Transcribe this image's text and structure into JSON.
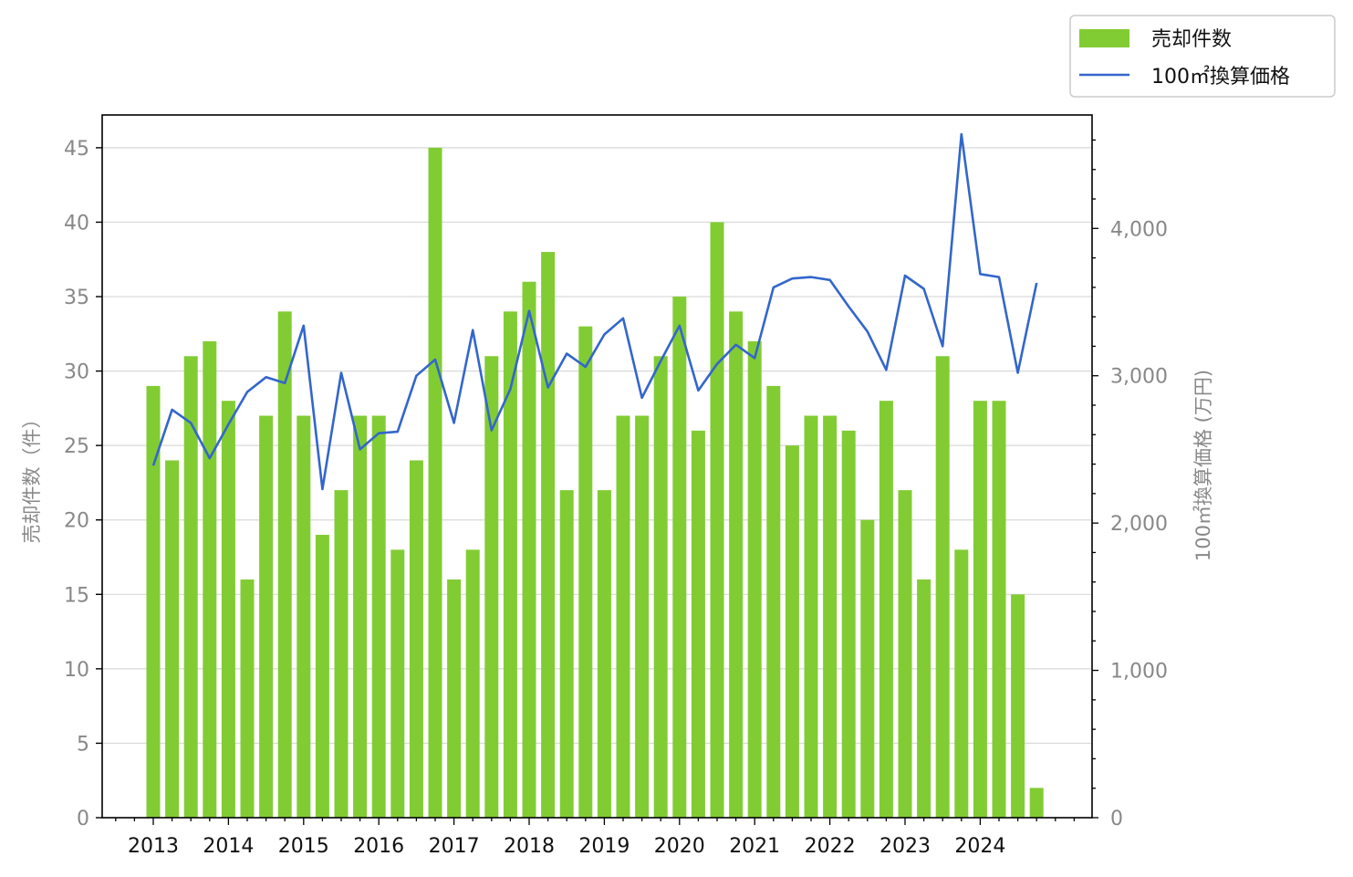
{
  "chart_data": {
    "type": "bar",
    "title": "",
    "xlabel": "",
    "ylabel": "売却件数（件）",
    "y2label": "100㎡換算価格 (万円)",
    "x_tick_labels": [
      "2013",
      "2014",
      "2015",
      "2016",
      "2017",
      "2018",
      "2019",
      "2020",
      "2021",
      "2022",
      "2023",
      "2024"
    ],
    "y_tick_labels": [
      "0",
      "5",
      "10",
      "15",
      "20",
      "25",
      "30",
      "35",
      "40",
      "45"
    ],
    "y2_tick_labels": [
      "0",
      "1,000",
      "2,000",
      "3,000",
      "4,000"
    ],
    "ylim": [
      0,
      47.2
    ],
    "y2lim": [
      0,
      4770
    ],
    "grid": true,
    "legend_position": "top-right",
    "legend": [
      "売却件数",
      "100㎡換算価格"
    ],
    "colors": {
      "bar": "#82cc33",
      "line": "#3366cc"
    },
    "x": [
      "2013Q1",
      "2013Q2",
      "2013Q3",
      "2013Q4",
      "2014Q1",
      "2014Q2",
      "2014Q3",
      "2014Q4",
      "2015Q1",
      "2015Q2",
      "2015Q3",
      "2015Q4",
      "2016Q1",
      "2016Q2",
      "2016Q3",
      "2016Q4",
      "2017Q1",
      "2017Q2",
      "2017Q3",
      "2017Q4",
      "2018Q1",
      "2018Q2",
      "2018Q3",
      "2018Q4",
      "2019Q1",
      "2019Q2",
      "2019Q3",
      "2019Q4",
      "2020Q1",
      "2020Q2",
      "2020Q3",
      "2020Q4",
      "2021Q1",
      "2021Q2",
      "2021Q3",
      "2021Q4",
      "2022Q1",
      "2022Q2",
      "2022Q3",
      "2022Q4",
      "2023Q1",
      "2023Q2",
      "2023Q3",
      "2023Q4",
      "2024Q1",
      "2024Q2",
      "2024Q3",
      "2024Q4"
    ],
    "series": [
      {
        "name": "売却件数",
        "type": "bar",
        "axis": "left",
        "values": [
          29,
          24,
          31,
          32,
          28,
          16,
          27,
          34,
          27,
          19,
          22,
          27,
          27,
          18,
          24,
          45,
          16,
          18,
          31,
          34,
          36,
          38,
          22,
          33,
          22,
          27,
          27,
          31,
          35,
          26,
          40,
          34,
          32,
          29,
          25,
          27,
          27,
          26,
          20,
          28,
          22,
          16,
          31,
          18,
          28,
          28,
          15,
          2
        ]
      },
      {
        "name": "100㎡換算価格",
        "type": "line",
        "axis": "right",
        "values": [
          2390,
          2770,
          2680,
          2440,
          2670,
          2890,
          2990,
          2950,
          3340,
          2230,
          3020,
          2500,
          2610,
          2620,
          3000,
          3110,
          2680,
          3310,
          2630,
          2910,
          3440,
          2920,
          3150,
          3060,
          3280,
          3390,
          2850,
          3100,
          3340,
          2900,
          3080,
          3210,
          3120,
          3600,
          3660,
          3670,
          3650,
          3470,
          3300,
          3040,
          3680,
          3590,
          3200,
          4640,
          3690,
          3670,
          3020,
          3630
        ]
      }
    ]
  }
}
